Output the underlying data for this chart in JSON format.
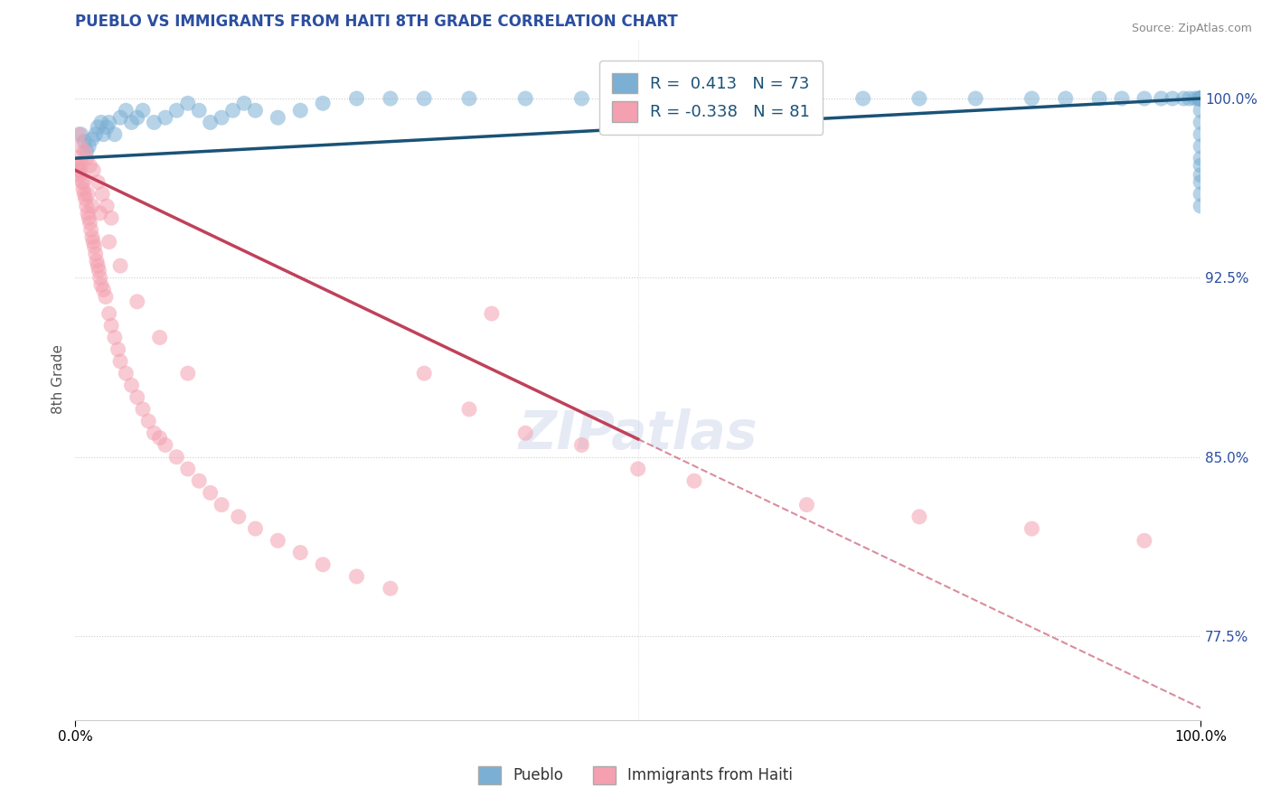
{
  "title": "PUEBLO VS IMMIGRANTS FROM HAITI 8TH GRADE CORRELATION CHART",
  "source_text": "Source: ZipAtlas.com",
  "ylabel": "8th Grade",
  "xlim": [
    0.0,
    100.0
  ],
  "ylim": [
    74.0,
    102.5
  ],
  "yticks": [
    77.5,
    85.0,
    92.5,
    100.0
  ],
  "ytick_labels": [
    "77.5%",
    "85.0%",
    "92.5%",
    "100.0%"
  ],
  "blue_R": 0.413,
  "blue_N": 73,
  "pink_R": -0.338,
  "pink_N": 81,
  "blue_color": "#7BAFD4",
  "pink_color": "#F4A0B0",
  "trend_blue_color": "#1A5276",
  "trend_pink_color": "#C0415A",
  "grid_color": "#CCCCCC",
  "title_color": "#2B4EA0",
  "axis_label_color": "#2B4EA0",
  "source_color": "#888888",
  "legend_label_blue": "Pueblo",
  "legend_label_pink": "Immigrants from Haiti",
  "blue_trend_x0": 0.0,
  "blue_trend_y0": 97.5,
  "blue_trend_x1": 100.0,
  "blue_trend_y1": 100.0,
  "pink_trend_x0": 0.0,
  "pink_trend_y0": 97.0,
  "pink_trend_x1": 100.0,
  "pink_trend_y1": 74.5,
  "pink_solid_end_x": 50.0,
  "blue_scatter_x": [
    0.5,
    0.8,
    1.0,
    1.2,
    1.5,
    1.8,
    2.0,
    2.3,
    2.5,
    2.8,
    3.0,
    3.5,
    4.0,
    4.5,
    5.0,
    5.5,
    6.0,
    7.0,
    8.0,
    9.0,
    10.0,
    11.0,
    12.0,
    13.0,
    14.0,
    15.0,
    16.0,
    18.0,
    20.0,
    22.0,
    25.0,
    28.0,
    31.0,
    35.0,
    40.0,
    45.0,
    50.0,
    55.0,
    60.0,
    65.0,
    70.0,
    75.0,
    80.0,
    85.0,
    88.0,
    91.0,
    93.0,
    95.0,
    96.5,
    97.5,
    98.5,
    99.0,
    99.5,
    99.8,
    99.9,
    100.0,
    100.0,
    100.0,
    100.0,
    100.0,
    100.0,
    100.0,
    100.0,
    100.0,
    100.0,
    100.0,
    100.0,
    100.0,
    100.0,
    100.0,
    100.0,
    100.0,
    100.0
  ],
  "blue_scatter_y": [
    98.5,
    98.2,
    97.8,
    98.0,
    98.3,
    98.5,
    98.8,
    99.0,
    98.5,
    98.8,
    99.0,
    98.5,
    99.2,
    99.5,
    99.0,
    99.2,
    99.5,
    99.0,
    99.2,
    99.5,
    99.8,
    99.5,
    99.0,
    99.2,
    99.5,
    99.8,
    99.5,
    99.2,
    99.5,
    99.8,
    100.0,
    100.0,
    100.0,
    100.0,
    100.0,
    100.0,
    100.0,
    100.0,
    100.0,
    100.0,
    100.0,
    100.0,
    100.0,
    100.0,
    100.0,
    100.0,
    100.0,
    100.0,
    100.0,
    100.0,
    100.0,
    100.0,
    100.0,
    100.0,
    100.0,
    100.0,
    100.0,
    100.0,
    100.0,
    100.0,
    100.0,
    100.0,
    100.0,
    99.5,
    99.0,
    98.5,
    98.0,
    97.5,
    97.2,
    96.8,
    96.5,
    96.0,
    95.5
  ],
  "pink_scatter_x": [
    0.1,
    0.2,
    0.3,
    0.4,
    0.5,
    0.6,
    0.7,
    0.8,
    0.9,
    1.0,
    1.1,
    1.2,
    1.3,
    1.4,
    1.5,
    1.6,
    1.7,
    1.8,
    1.9,
    2.0,
    2.1,
    2.2,
    2.3,
    2.5,
    2.7,
    3.0,
    3.2,
    3.5,
    3.8,
    4.0,
    4.5,
    5.0,
    5.5,
    6.0,
    6.5,
    7.0,
    7.5,
    8.0,
    9.0,
    10.0,
    11.0,
    12.0,
    13.0,
    14.5,
    16.0,
    18.0,
    20.0,
    22.0,
    25.0,
    28.0,
    31.0,
    35.0,
    40.0,
    45.0,
    50.0,
    0.3,
    0.5,
    0.8,
    1.0,
    1.3,
    1.6,
    2.0,
    2.4,
    2.8,
    3.2,
    0.4,
    0.7,
    1.1,
    1.5,
    2.2,
    3.0,
    4.0,
    5.5,
    7.5,
    10.0,
    37.0,
    55.0,
    65.0,
    75.0,
    85.0,
    95.0
  ],
  "pink_scatter_y": [
    97.5,
    97.2,
    97.0,
    96.8,
    97.3,
    96.5,
    96.2,
    96.0,
    95.8,
    95.5,
    95.2,
    95.0,
    94.8,
    94.5,
    94.2,
    94.0,
    93.8,
    93.5,
    93.2,
    93.0,
    92.8,
    92.5,
    92.2,
    92.0,
    91.7,
    91.0,
    90.5,
    90.0,
    89.5,
    89.0,
    88.5,
    88.0,
    87.5,
    87.0,
    86.5,
    86.0,
    85.8,
    85.5,
    85.0,
    84.5,
    84.0,
    83.5,
    83.0,
    82.5,
    82.0,
    81.5,
    81.0,
    80.5,
    80.0,
    79.5,
    88.5,
    87.0,
    86.0,
    85.5,
    84.5,
    98.5,
    98.0,
    97.8,
    97.5,
    97.2,
    97.0,
    96.5,
    96.0,
    95.5,
    95.0,
    97.0,
    96.5,
    96.0,
    95.5,
    95.2,
    94.0,
    93.0,
    91.5,
    90.0,
    88.5,
    91.0,
    84.0,
    83.0,
    82.5,
    82.0,
    81.5
  ]
}
